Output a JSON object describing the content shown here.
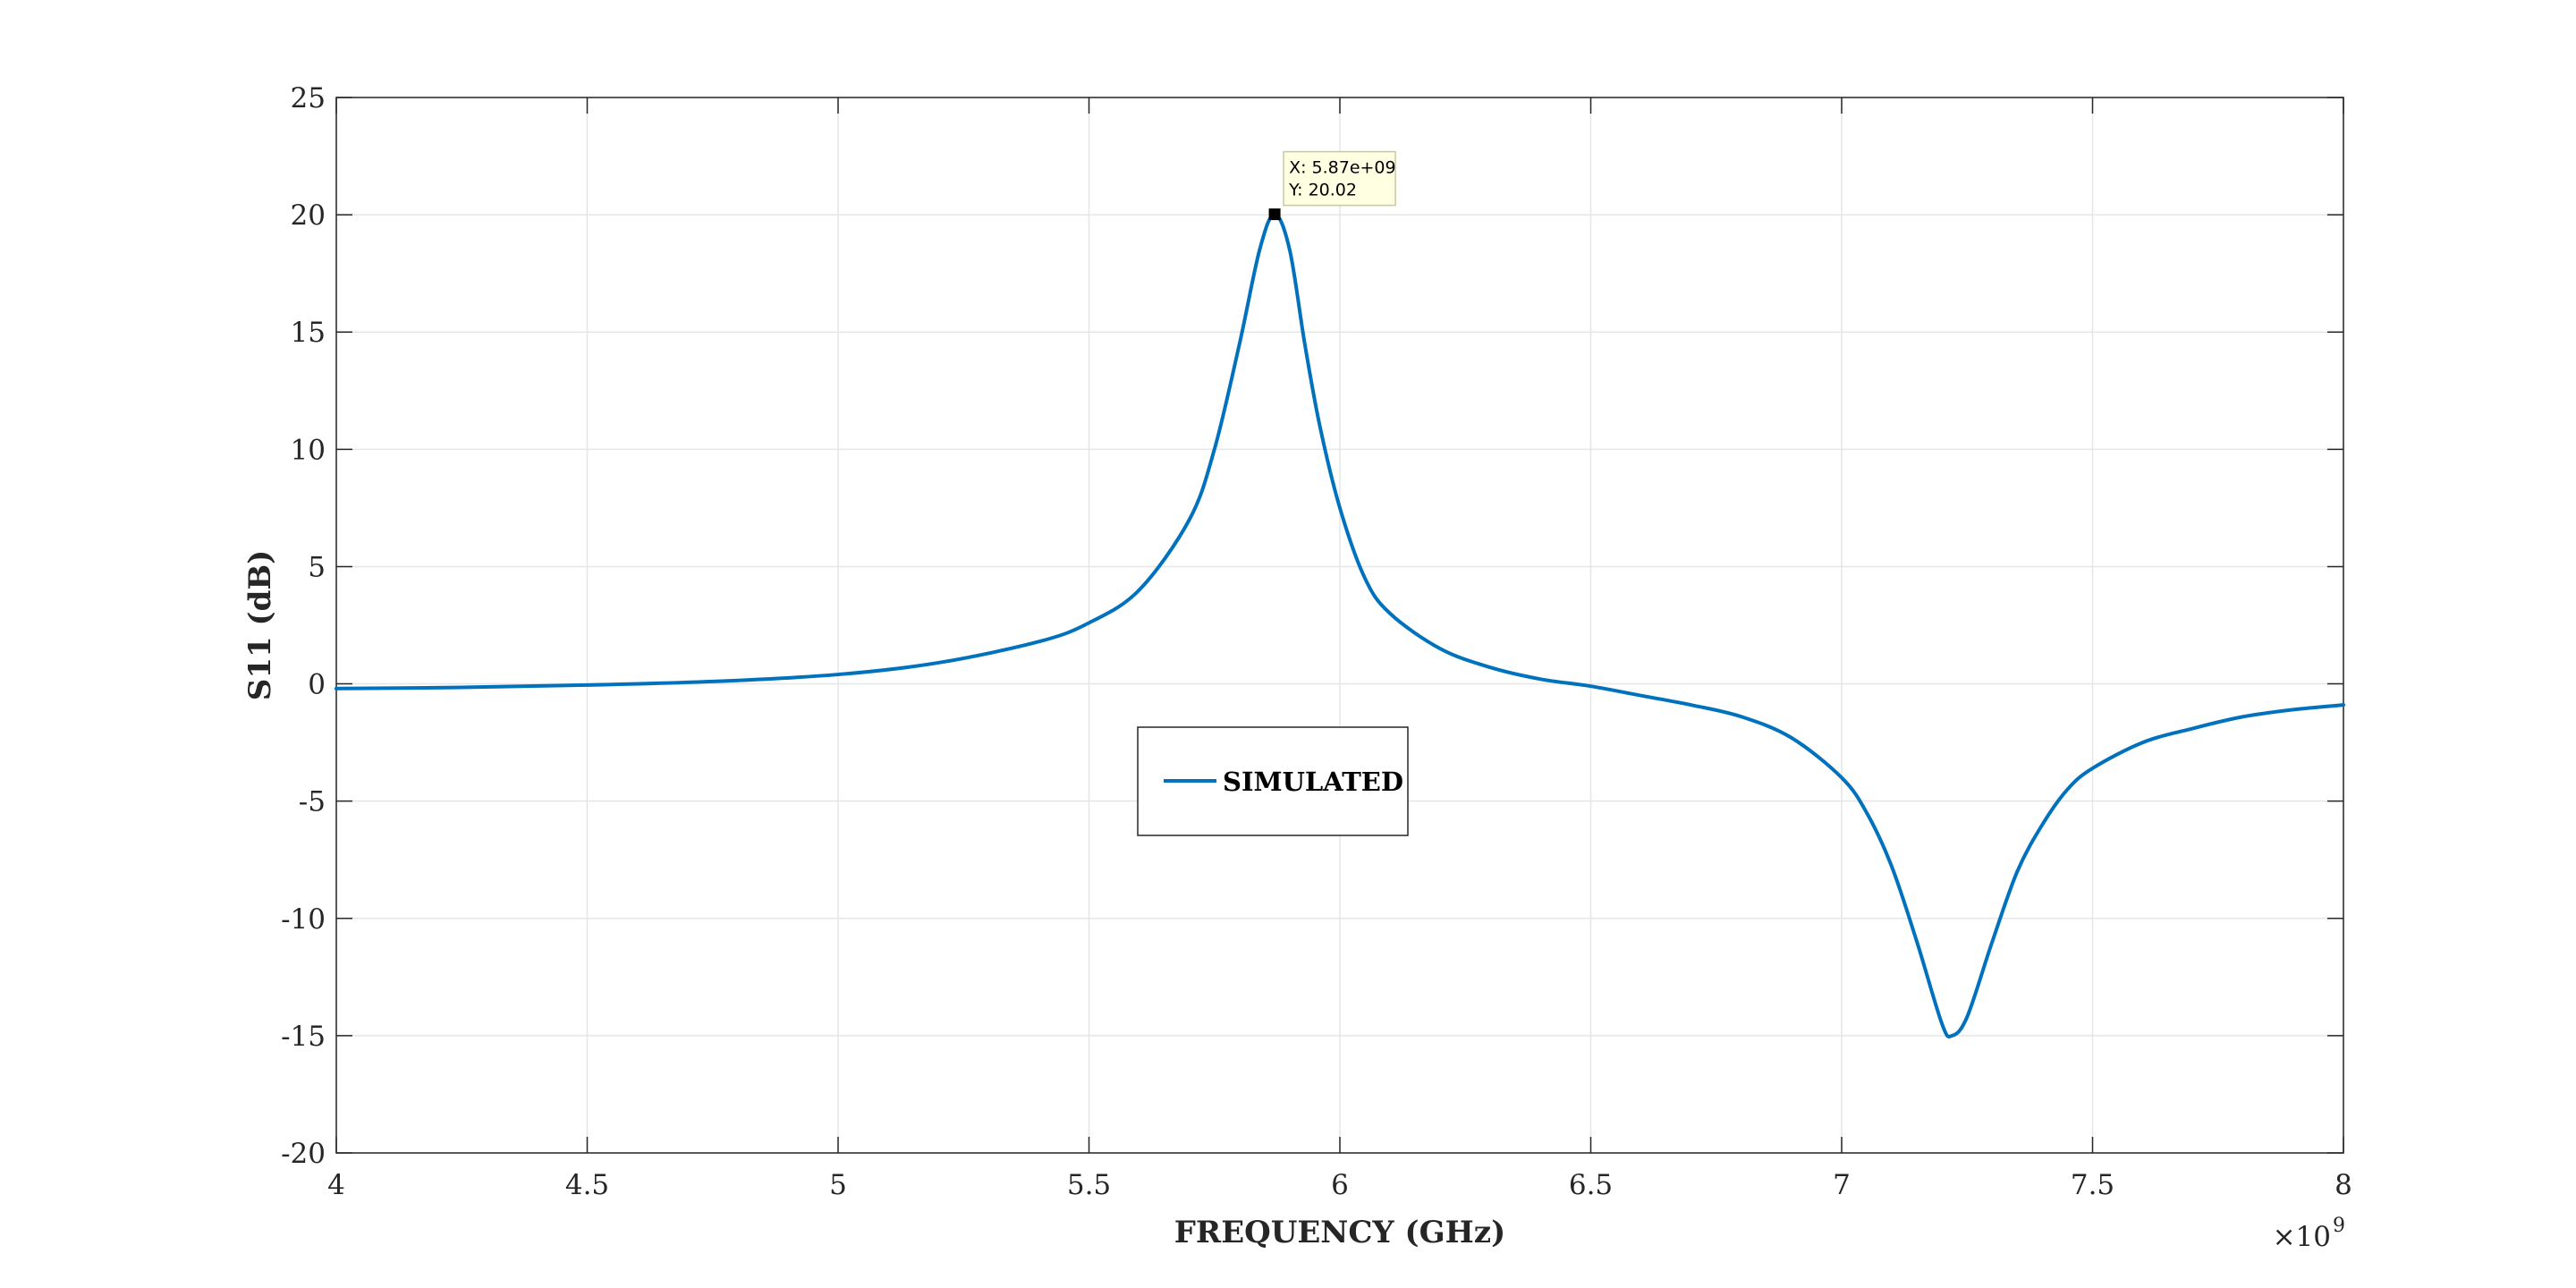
{
  "chart_data": {
    "type": "line",
    "title": "",
    "xlabel": "FREQUENCY (GHz)",
    "ylabel": "S11 (dB)",
    "xlim": [
      4000000000.0,
      8000000000.0
    ],
    "ylim": [
      -20,
      25
    ],
    "x_exponent_label": "×10",
    "x_exponent_power": "9",
    "xticks": [
      4000000000.0,
      4500000000.0,
      5000000000.0,
      5500000000.0,
      6000000000.0,
      6500000000.0,
      7000000000.0,
      7500000000.0,
      8000000000.0
    ],
    "xtick_labels": [
      "4",
      "4.5",
      "5",
      "5.5",
      "6",
      "6.5",
      "7",
      "7.5",
      "8"
    ],
    "yticks": [
      -20,
      -15,
      -10,
      -5,
      0,
      5,
      10,
      15,
      20,
      25
    ],
    "ytick_labels": [
      "-20",
      "-15",
      "-10",
      "-5",
      "0",
      "5",
      "10",
      "15",
      "20",
      "25"
    ],
    "grid": true,
    "legend_position": "center",
    "color": "#0072BD",
    "series": [
      {
        "name": "SIMULATED",
        "x": [
          4000000000.0,
          4250000000.0,
          4500000000.0,
          4750000000.0,
          5000000000.0,
          5200000000.0,
          5400000000.0,
          5500000000.0,
          5600000000.0,
          5700000000.0,
          5750000000.0,
          5800000000.0,
          5840000000.0,
          5870000000.0,
          5900000000.0,
          5930000000.0,
          5960000000.0,
          6000000000.0,
          6050000000.0,
          6100000000.0,
          6200000000.0,
          6300000000.0,
          6400000000.0,
          6500000000.0,
          6600000000.0,
          6700000000.0,
          6800000000.0,
          6900000000.0,
          7000000000.0,
          7050000000.0,
          7100000000.0,
          7150000000.0,
          7200000000.0,
          7220000000.0,
          7250000000.0,
          7300000000.0,
          7350000000.0,
          7400000000.0,
          7450000000.0,
          7500000000.0,
          7600000000.0,
          7700000000.0,
          7800000000.0,
          7900000000.0,
          8000000000.0
        ],
        "y": [
          -0.2,
          -0.15,
          -0.05,
          0.1,
          0.4,
          0.9,
          1.8,
          2.6,
          4.0,
          7.0,
          10.0,
          14.5,
          18.5,
          20.02,
          18.5,
          14.5,
          11.0,
          7.5,
          4.5,
          3.0,
          1.5,
          0.7,
          0.2,
          -0.1,
          -0.5,
          -0.9,
          -1.4,
          -2.3,
          -4.0,
          -5.5,
          -7.8,
          -11.0,
          -14.5,
          -15.0,
          -14.2,
          -11.0,
          -8.0,
          -6.0,
          -4.5,
          -3.6,
          -2.5,
          -1.9,
          -1.4,
          -1.1,
          -0.9
        ]
      }
    ],
    "datatip": {
      "x": 5870000000.0,
      "y": 20.02,
      "label_x": "X: 5.87e+09",
      "label_y": "Y: 20.02"
    }
  }
}
